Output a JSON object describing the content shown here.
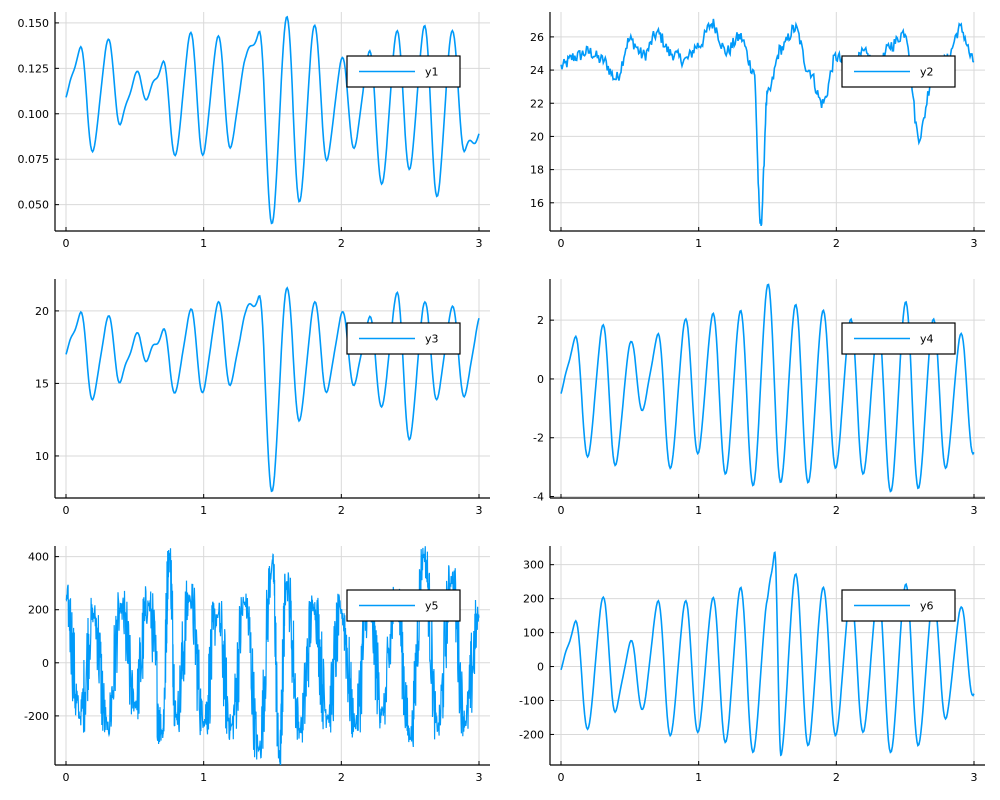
{
  "chart_data": [
    {
      "type": "line",
      "series": [
        {
          "name": "y1",
          "color": "#009af9"
        }
      ],
      "x": [
        0,
        0.1,
        0.2,
        0.3,
        0.4,
        0.5,
        0.6,
        0.7,
        0.8,
        0.9,
        1.0,
        1.1,
        1.2,
        1.3,
        1.4,
        1.5,
        1.6,
        1.7,
        1.8,
        1.9,
        2.0,
        2.1,
        2.2,
        2.3,
        2.4,
        2.5,
        2.6,
        2.7,
        2.8,
        2.9,
        3.0
      ],
      "values": [
        0.109,
        0.136,
        0.08,
        0.14,
        0.095,
        0.121,
        0.11,
        0.128,
        0.078,
        0.144,
        0.078,
        0.142,
        0.082,
        0.13,
        0.145,
        0.04,
        0.153,
        0.052,
        0.148,
        0.075,
        0.13,
        0.082,
        0.134,
        0.062,
        0.145,
        0.07,
        0.148,
        0.055,
        0.145,
        0.08,
        0.089
      ],
      "xlim": [
        -0.08,
        3.08
      ],
      "ylim": [
        0.0355,
        0.156
      ],
      "xticks": [
        0,
        1,
        2,
        3
      ],
      "xtick_labels": [
        "0",
        "1",
        "2",
        "3"
      ],
      "yticks": [
        0.05,
        0.075,
        0.1,
        0.125,
        0.15
      ],
      "ytick_labels": [
        "0.050",
        "0.075",
        "0.100",
        "0.125",
        "0.150"
      ],
      "grid": true,
      "legend": "top-right"
    },
    {
      "type": "line",
      "series": [
        {
          "name": "y2",
          "color": "#009af9"
        }
      ],
      "x": [
        0,
        0.1,
        0.2,
        0.3,
        0.4,
        0.5,
        0.6,
        0.7,
        0.8,
        0.9,
        1.0,
        1.1,
        1.2,
        1.3,
        1.4,
        1.45,
        1.5,
        1.6,
        1.7,
        1.8,
        1.9,
        2.0,
        2.1,
        2.2,
        2.3,
        2.4,
        2.5,
        2.6,
        2.7,
        2.8,
        2.9,
        3.0
      ],
      "values": [
        24.2,
        24.8,
        25.1,
        24.6,
        23.5,
        25.8,
        24.9,
        26.2,
        25.0,
        24.6,
        25.5,
        26.8,
        25.1,
        26.0,
        24.0,
        14.7,
        22.5,
        25.3,
        26.5,
        24.0,
        22.0,
        24.8,
        23.8,
        25.0,
        24.2,
        25.5,
        26.3,
        20.0,
        23.5,
        24.6,
        26.5,
        24.5
      ],
      "xlim": [
        -0.08,
        3.08
      ],
      "ylim": [
        14.3,
        27.5
      ],
      "xticks": [
        0,
        1,
        2,
        3
      ],
      "xtick_labels": [
        "0",
        "1",
        "2",
        "3"
      ],
      "yticks": [
        16,
        18,
        20,
        22,
        24,
        26
      ],
      "ytick_labels": [
        "16",
        "18",
        "20",
        "22",
        "24",
        "26"
      ],
      "grid": true,
      "legend": "top-right"
    },
    {
      "type": "line",
      "series": [
        {
          "name": "y3",
          "color": "#009af9"
        }
      ],
      "x": [
        0,
        0.1,
        0.2,
        0.3,
        0.4,
        0.5,
        0.6,
        0.7,
        0.8,
        0.9,
        1.0,
        1.1,
        1.2,
        1.3,
        1.4,
        1.5,
        1.6,
        1.7,
        1.8,
        1.9,
        2.0,
        2.1,
        2.2,
        2.3,
        2.4,
        2.5,
        2.6,
        2.7,
        2.8,
        2.9,
        3.0
      ],
      "values": [
        17.0,
        19.8,
        14.0,
        19.5,
        15.2,
        18.2,
        16.8,
        18.6,
        14.5,
        20.0,
        14.5,
        20.5,
        15.0,
        19.8,
        21.0,
        7.6,
        21.5,
        12.5,
        20.5,
        14.5,
        19.8,
        15.0,
        19.5,
        13.5,
        21.2,
        11.2,
        20.5,
        14.0,
        20.2,
        14.2,
        19.5
      ],
      "xlim": [
        -0.08,
        3.08
      ],
      "ylim": [
        7.1,
        22.2
      ],
      "xticks": [
        0,
        1,
        2,
        3
      ],
      "xtick_labels": [
        "0",
        "1",
        "2",
        "3"
      ],
      "yticks": [
        10,
        15,
        20
      ],
      "ytick_labels": [
        "10",
        "15",
        "20"
      ],
      "grid": true,
      "legend": "top-right"
    },
    {
      "type": "line",
      "series": [
        {
          "name": "y4",
          "color": "#009af9"
        }
      ],
      "x": [
        0,
        0.1,
        0.2,
        0.3,
        0.4,
        0.5,
        0.6,
        0.7,
        0.8,
        0.9,
        1.0,
        1.1,
        1.2,
        1.3,
        1.4,
        1.5,
        1.6,
        1.7,
        1.8,
        1.9,
        2.0,
        2.1,
        2.2,
        2.3,
        2.4,
        2.5,
        2.6,
        2.7,
        2.8,
        2.9,
        3.0
      ],
      "values": [
        -0.5,
        1.4,
        -2.6,
        1.8,
        -2.9,
        1.2,
        -1.0,
        1.5,
        -3.0,
        2.0,
        -2.5,
        2.2,
        -3.2,
        2.3,
        -3.6,
        3.2,
        -3.5,
        2.5,
        -3.5,
        2.3,
        -3.0,
        2.0,
        -3.2,
        1.8,
        -3.8,
        2.6,
        -3.7,
        2.0,
        -3.0,
        1.5,
        -2.5
      ],
      "xlim": [
        -0.08,
        3.08
      ],
      "ylim": [
        -4.05,
        3.4
      ],
      "xticks": [
        0,
        1,
        2,
        3
      ],
      "xtick_labels": [
        "0",
        "1",
        "2",
        "3"
      ],
      "yticks": [
        -4,
        -2,
        0,
        2
      ],
      "ytick_labels": [
        "-4",
        "-2",
        "0",
        "2"
      ],
      "grid": true,
      "legend": "top-right"
    },
    {
      "type": "line",
      "series": [
        {
          "name": "y5",
          "color": "#009af9"
        }
      ],
      "x": [
        0,
        0.1,
        0.2,
        0.3,
        0.4,
        0.5,
        0.6,
        0.7,
        0.75,
        0.8,
        0.9,
        1.0,
        1.1,
        1.2,
        1.3,
        1.4,
        1.5,
        1.55,
        1.6,
        1.7,
        1.8,
        1.9,
        2.0,
        2.1,
        2.2,
        2.3,
        2.4,
        2.5,
        2.6,
        2.7,
        2.8,
        2.9,
        3.0
      ],
      "values": [
        240,
        -200,
        180,
        -240,
        200,
        -150,
        220,
        -260,
        410,
        -200,
        250,
        -220,
        180,
        -240,
        230,
        -330,
        380,
        -360,
        300,
        -250,
        210,
        -200,
        190,
        -230,
        220,
        -180,
        240,
        -280,
        410,
        -250,
        320,
        -220,
        170
      ],
      "xlim": [
        -0.08,
        3.08
      ],
      "ylim": [
        -385,
        440
      ],
      "xticks": [
        0,
        1,
        2,
        3
      ],
      "xtick_labels": [
        "0",
        "1",
        "2",
        "3"
      ],
      "yticks": [
        -200,
        0,
        200,
        400
      ],
      "ytick_labels": [
        "-200",
        "0",
        "200",
        "400"
      ],
      "grid": true,
      "legend": "top-right"
    },
    {
      "type": "line",
      "series": [
        {
          "name": "y6",
          "color": "#009af9"
        }
      ],
      "x": [
        0,
        0.1,
        0.2,
        0.3,
        0.4,
        0.5,
        0.6,
        0.7,
        0.8,
        0.9,
        1.0,
        1.1,
        1.2,
        1.3,
        1.4,
        1.5,
        1.55,
        1.6,
        1.7,
        1.8,
        1.9,
        2.0,
        2.1,
        2.2,
        2.3,
        2.4,
        2.5,
        2.6,
        2.7,
        2.8,
        2.9,
        3.0
      ],
      "values": [
        -10,
        130,
        -180,
        200,
        -130,
        70,
        -120,
        190,
        -200,
        190,
        -190,
        200,
        -220,
        230,
        -250,
        200,
        335,
        -260,
        270,
        -230,
        230,
        -200,
        210,
        -190,
        220,
        -250,
        240,
        -230,
        200,
        -150,
        170,
        -80
      ],
      "xlim": [
        -0.08,
        3.08
      ],
      "ylim": [
        -290,
        355
      ],
      "xticks": [
        0,
        1,
        2,
        3
      ],
      "xtick_labels": [
        "0",
        "1",
        "2",
        "3"
      ],
      "yticks": [
        -200,
        -100,
        0,
        100,
        200,
        300
      ],
      "ytick_labels": [
        "-200",
        "-100",
        "0",
        "100",
        "200",
        "300"
      ],
      "grid": true,
      "legend": "top-right"
    }
  ]
}
